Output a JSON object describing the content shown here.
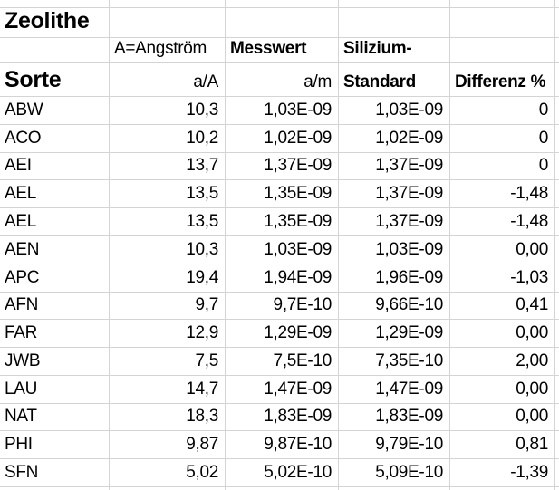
{
  "sheet": {
    "title": "Zeolithe",
    "background": "#ffffff",
    "gridline_color": "#d4d4d4",
    "text_color": "#000000"
  },
  "table": {
    "header": {
      "col1_title": "Sorte",
      "col2_note": "A=Angström",
      "col2_unit": "a/A",
      "col3_title": "Messwert",
      "col3_unit": "a/m",
      "col4_title_line1": "Silizium-",
      "col4_title_line2": "Standard",
      "col5_title": "Differenz %"
    },
    "rows": [
      {
        "sorte": "ABW",
        "a_A": "10,3",
        "messwert": "1,03E-09",
        "standard": "1,03E-09",
        "differenz": "0"
      },
      {
        "sorte": "ACO",
        "a_A": "10,2",
        "messwert": "1,02E-09",
        "standard": "1,02E-09",
        "differenz": "0"
      },
      {
        "sorte": "AEI",
        "a_A": "13,7",
        "messwert": "1,37E-09",
        "standard": "1,37E-09",
        "differenz": "0"
      },
      {
        "sorte": "AEL",
        "a_A": "13,5",
        "messwert": "1,35E-09",
        "standard": "1,37E-09",
        "differenz": "-1,48"
      },
      {
        "sorte": "AEL",
        "a_A": "13,5",
        "messwert": "1,35E-09",
        "standard": "1,37E-09",
        "differenz": "-1,48"
      },
      {
        "sorte": "AEN",
        "a_A": "10,3",
        "messwert": "1,03E-09",
        "standard": "1,03E-09",
        "differenz": "0,00"
      },
      {
        "sorte": "APC",
        "a_A": "19,4",
        "messwert": "1,94E-09",
        "standard": "1,96E-09",
        "differenz": "-1,03"
      },
      {
        "sorte": "AFN",
        "a_A": "9,7",
        "messwert": "9,7E-10",
        "standard": "9,66E-10",
        "differenz": "0,41"
      },
      {
        "sorte": "FAR",
        "a_A": "12,9",
        "messwert": "1,29E-09",
        "standard": "1,29E-09",
        "differenz": "0,00"
      },
      {
        "sorte": "JWB",
        "a_A": "7,5",
        "messwert": "7,5E-10",
        "standard": "7,35E-10",
        "differenz": "2,00"
      },
      {
        "sorte": "LAU",
        "a_A": "14,7",
        "messwert": "1,47E-09",
        "standard": "1,47E-09",
        "differenz": "0,00"
      },
      {
        "sorte": "NAT",
        "a_A": "18,3",
        "messwert": "1,83E-09",
        "standard": "1,83E-09",
        "differenz": "0,00"
      },
      {
        "sorte": "PHI",
        "a_A": "9,87",
        "messwert": "9,87E-10",
        "standard": "9,79E-10",
        "differenz": "0,81"
      },
      {
        "sorte": "SFN",
        "a_A": "5,02",
        "messwert": "5,02E-10",
        "standard": "5,09E-10",
        "differenz": "-1,39"
      }
    ]
  }
}
